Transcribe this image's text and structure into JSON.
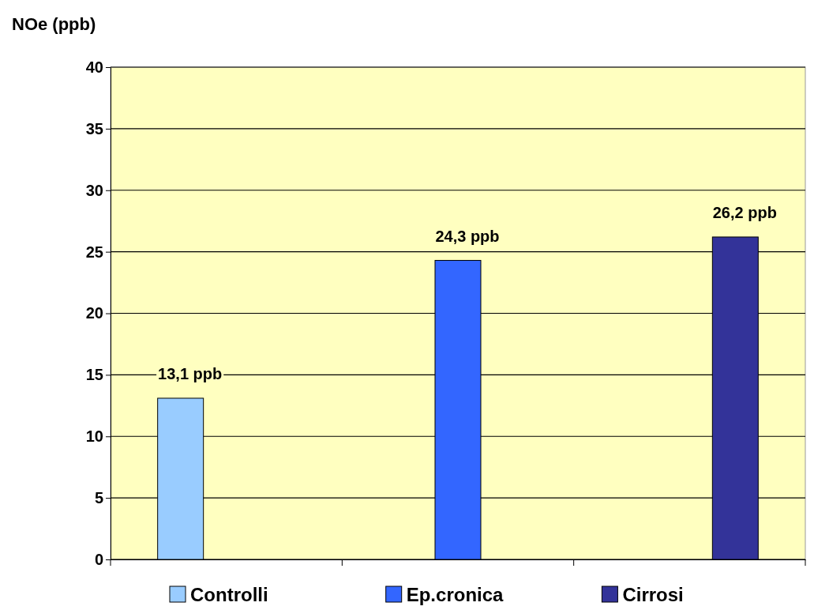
{
  "chart_data": {
    "type": "bar",
    "ylabel": "NOe (ppb)",
    "categories": [
      null,
      null,
      null
    ],
    "series": [
      {
        "name": "Controlli",
        "color": "#99ccff",
        "values": [
          13.1,
          null,
          null
        ],
        "value_labels": [
          "13,1 ppb",
          null,
          null
        ]
      },
      {
        "name": "Ep.cronica",
        "color": "#3366ff",
        "values": [
          null,
          24.3,
          null
        ],
        "value_labels": [
          null,
          "24,3 ppb",
          null
        ]
      },
      {
        "name": "Cirrosi",
        "color": "#333399",
        "values": [
          null,
          null,
          26.2
        ],
        "value_labels": [
          null,
          null,
          "26,2 ppb"
        ]
      }
    ],
    "ylim": [
      0,
      40
    ],
    "yticks": [
      0,
      5,
      10,
      15,
      20,
      25,
      30,
      35,
      40
    ],
    "grid": "y",
    "legend": "bottom"
  }
}
